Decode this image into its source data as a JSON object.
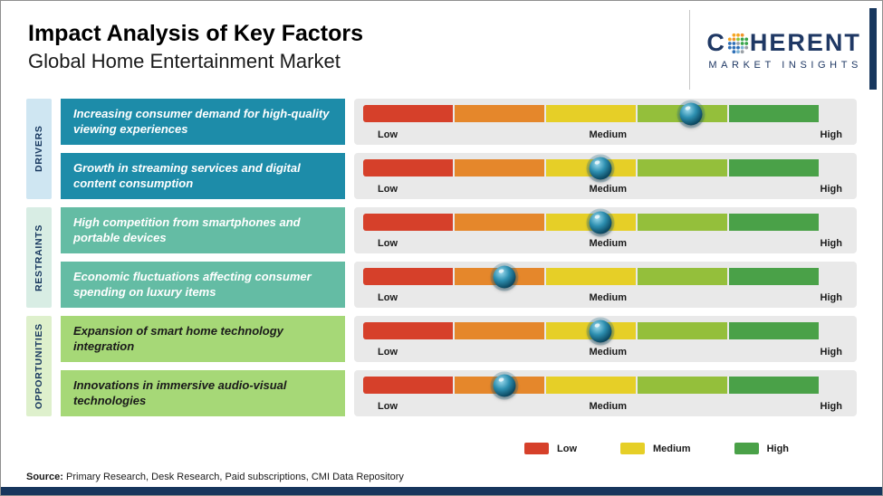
{
  "header": {
    "title": "Impact Analysis of Key Factors",
    "subtitle": "Global Home Entertainment Market"
  },
  "logo": {
    "part1": "C",
    "part2": "HERENT",
    "tagline": "MARKET INSIGHTS",
    "color": "#1f3864"
  },
  "groups": {
    "drivers": {
      "label": "DRIVERS",
      "card_bg": "#1d8ca9",
      "card_text": "#ffffff",
      "label_bg": "#cfe6f2",
      "label_text": "#17375e"
    },
    "restraints": {
      "label": "RESTRAINTS",
      "card_bg": "#64bca4",
      "card_text": "#ffffff",
      "label_bg": "#d8ede4",
      "label_text": "#17375e"
    },
    "opportunities": {
      "label": "OPPORTUNITIES",
      "card_bg": "#a6d877",
      "card_text": "#1a1a1a",
      "label_bg": "#def0cc",
      "label_text": "#17375e"
    }
  },
  "rows": [
    {
      "group": "drivers",
      "text": "Increasing consumer demand for high-quality viewing experiences",
      "marker_pct": 72,
      "impact_level": "Medium-High"
    },
    {
      "group": "drivers",
      "text": "Growth in streaming services and digital content consumption",
      "marker_pct": 52,
      "impact_level": "Medium"
    },
    {
      "group": "restraints",
      "text": "High competition from smartphones and portable devices",
      "marker_pct": 52,
      "impact_level": "Medium"
    },
    {
      "group": "restraints",
      "text": "Economic fluctuations affecting consumer spending on luxury items",
      "marker_pct": 31,
      "impact_level": "Low-Medium"
    },
    {
      "group": "opportunities",
      "text": "Expansion of smart home technology integration",
      "marker_pct": 52,
      "impact_level": "Medium"
    },
    {
      "group": "opportunities",
      "text": "Innovations in immersive audio-visual technologies",
      "marker_pct": 31,
      "impact_level": "Low-Medium"
    }
  ],
  "scale": [
    "Low",
    "Medium",
    "High"
  ],
  "bar": {
    "segment_colors": [
      "#d6402a",
      "#e5872b",
      "#e6cf27",
      "#94bf3b",
      "#4aa148"
    ],
    "track_bg": "#e9e9e9",
    "marker_color": "#0d4a63"
  },
  "legend": [
    {
      "label": "Low",
      "color": "#d6402a"
    },
    {
      "label": "Medium",
      "color": "#e6cf27"
    },
    {
      "label": "High",
      "color": "#4aa148"
    }
  ],
  "source": {
    "prefix": "Source:",
    "text": " Primary Research, Desk Research, Paid subscriptions, CMI Data Repository"
  },
  "footer": {
    "bar_color": "#17365d"
  },
  "chart_data": {
    "type": "heatmap",
    "title": "Impact Analysis of Key Factors",
    "subtitle": "Global Home Entertainment Market",
    "scale_labels": [
      "Low",
      "Medium",
      "High"
    ],
    "scale_range_pct": [
      0,
      100
    ],
    "legend": [
      "Low",
      "Medium",
      "High"
    ],
    "legend_position": "bottom-right",
    "items": [
      {
        "group": "Drivers",
        "factor": "Increasing consumer demand for high-quality viewing experiences",
        "impact_position_pct": 72,
        "impact_level": "Medium-High"
      },
      {
        "group": "Drivers",
        "factor": "Growth in streaming services and digital content consumption",
        "impact_position_pct": 52,
        "impact_level": "Medium"
      },
      {
        "group": "Restraints",
        "factor": "High competition from smartphones and portable devices",
        "impact_position_pct": 52,
        "impact_level": "Medium"
      },
      {
        "group": "Restraints",
        "factor": "Economic fluctuations affecting consumer spending on luxury items",
        "impact_position_pct": 31,
        "impact_level": "Low-Medium"
      },
      {
        "group": "Opportunities",
        "factor": "Expansion of smart home technology integration",
        "impact_position_pct": 52,
        "impact_level": "Medium"
      },
      {
        "group": "Opportunities",
        "factor": "Innovations in immersive audio-visual technologies",
        "impact_position_pct": 31,
        "impact_level": "Low-Medium"
      }
    ]
  }
}
